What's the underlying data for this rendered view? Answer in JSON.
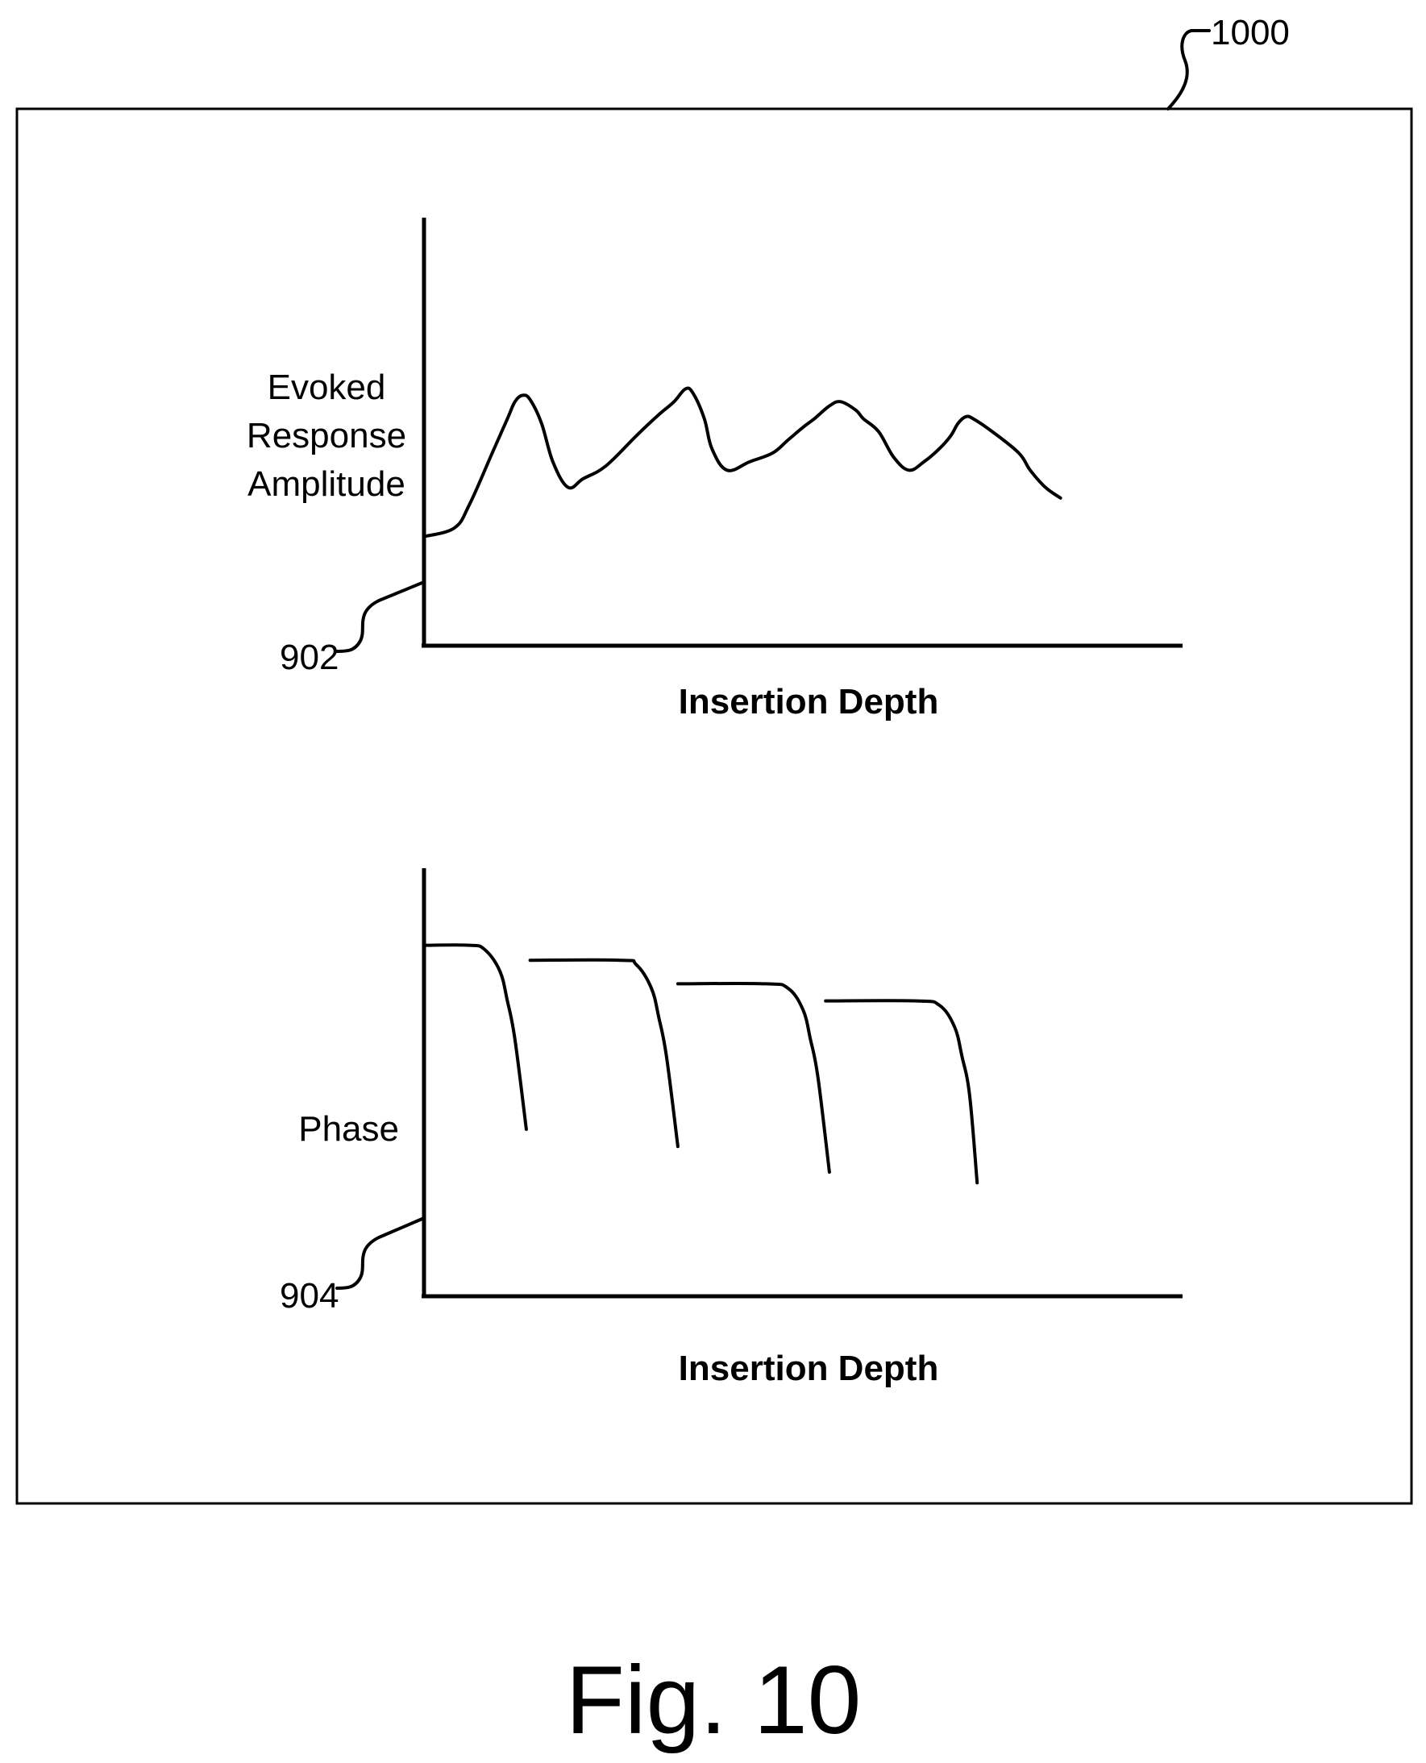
{
  "figure": {
    "caption": "Fig. 10",
    "reference_numeral": "1000"
  },
  "chart_data": [
    {
      "type": "line",
      "ref_label": "902",
      "ylabel": [
        "Evoked",
        "Response",
        "Amplitude"
      ],
      "xlabel": "Insertion Depth",
      "xlim": [
        0,
        100
      ],
      "ylim": [
        0,
        100
      ],
      "grid": false,
      "ticks": false,
      "series": [
        {
          "x": [
            0,
            4,
            6,
            9,
            11,
            12,
            13,
            14,
            15.5,
            17,
            19,
            21,
            24,
            28,
            31,
            33,
            34.5,
            35.5,
            37,
            38,
            40,
            43,
            46,
            48,
            50,
            51.5,
            53.5,
            55,
            57,
            58,
            60,
            62,
            64,
            66,
            68,
            69.5,
            70.5,
            71.5,
            72.5,
            75,
            78.5,
            80,
            82,
            84
          ],
          "y": [
            25.5,
            27.5,
            33,
            45,
            53,
            57,
            58.5,
            57.5,
            52,
            43,
            37,
            39,
            42,
            49,
            54,
            57,
            60,
            59,
            53,
            46,
            41,
            43,
            45,
            48,
            51,
            53,
            56,
            57,
            55,
            53,
            50,
            44,
            41,
            43,
            46,
            49,
            52,
            53.5,
            53,
            50,
            45,
            41,
            37,
            34.5
          ]
        }
      ]
    },
    {
      "type": "line",
      "ref_label": "904",
      "ylabel": [
        "Phase"
      ],
      "xlabel": "Insertion Depth",
      "xlim": [
        0,
        100
      ],
      "ylim": [
        0,
        100
      ],
      "grid": false,
      "ticks": false,
      "series": [
        {
          "x": [
            0,
            6,
            8,
            10,
            11,
            12,
            13.5
          ],
          "y": [
            82,
            82,
            81,
            76,
            69,
            60,
            39
          ]
        },
        {
          "x": [
            14,
            26,
            28,
            30,
            31,
            32,
            33.5
          ],
          "y": [
            78.5,
            78.5,
            77.5,
            72,
            65,
            56,
            35
          ]
        },
        {
          "x": [
            33.5,
            45,
            48,
            50,
            51,
            52,
            53.5
          ],
          "y": [
            73,
            73,
            72,
            67,
            60,
            51,
            29
          ]
        },
        {
          "x": [
            53,
            65,
            68,
            70,
            71,
            72,
            73
          ],
          "y": [
            69,
            69,
            68,
            63,
            56,
            47,
            26.5
          ]
        }
      ]
    }
  ]
}
